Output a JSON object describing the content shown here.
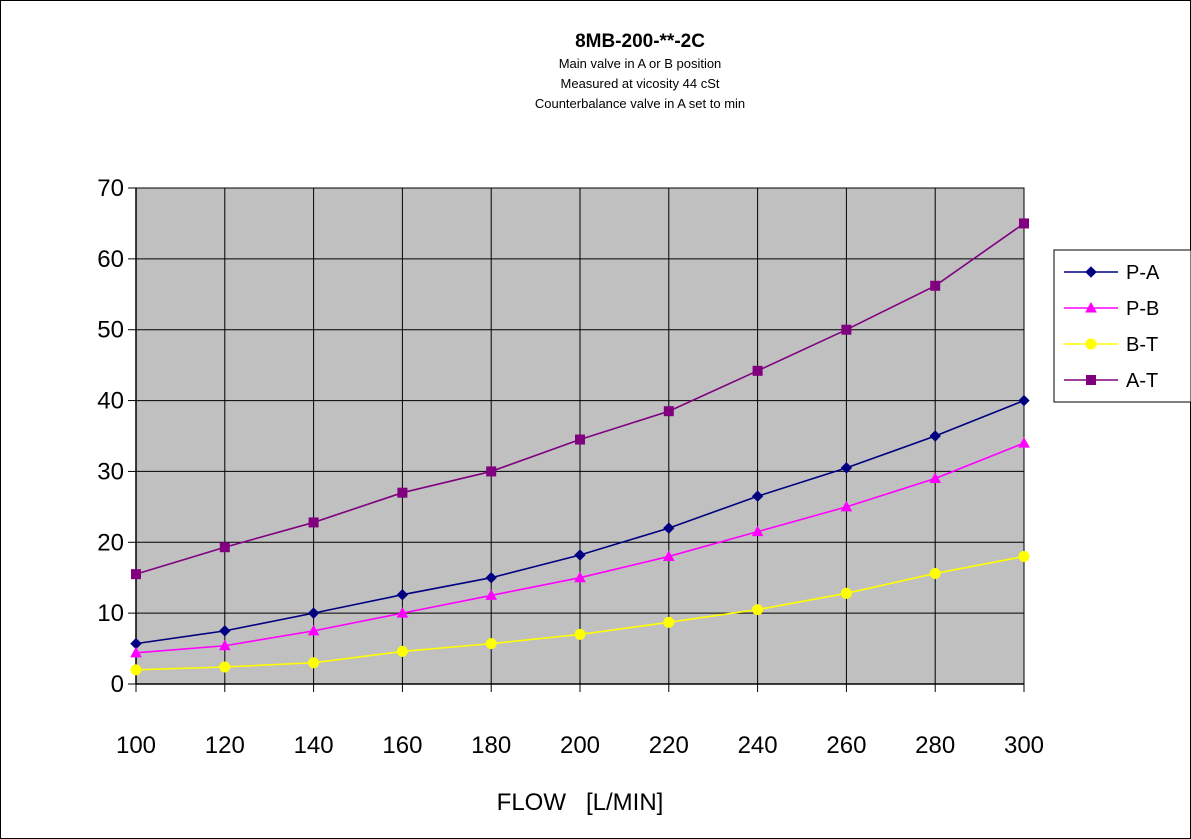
{
  "chart_data": {
    "type": "line",
    "title": "8MB-200-**-2C",
    "subtitle_lines": [
      "Main valve in A or B position",
      "Measured at vicosity 44 cSt",
      "Counterbalance valve in A set to min"
    ],
    "xlabel": "FLOW   [L/MIN]",
    "ylabel": "",
    "x": [
      100,
      120,
      140,
      160,
      180,
      200,
      220,
      240,
      260,
      280,
      300
    ],
    "xlim": [
      100,
      300
    ],
    "ylim": [
      0,
      70
    ],
    "x_ticks": [
      "100",
      "120",
      "140",
      "160",
      "180",
      "200",
      "220",
      "240",
      "260",
      "280",
      "300"
    ],
    "y_ticks": [
      "0",
      "10",
      "20",
      "30",
      "40",
      "50",
      "60",
      "70"
    ],
    "grid": true,
    "plot_background": "#c0c0c0",
    "legend_position": "right",
    "series": [
      {
        "name": "P-A",
        "color": "#000080",
        "marker": "diamond",
        "values": [
          5.7,
          7.5,
          10,
          12.6,
          15,
          18.2,
          22,
          26.5,
          30.5,
          35,
          40
        ]
      },
      {
        "name": "P-B",
        "color": "#ff00ff",
        "marker": "triangle",
        "values": [
          4.4,
          5.4,
          7.5,
          10,
          12.5,
          15,
          18,
          21.5,
          25,
          29,
          34
        ]
      },
      {
        "name": "B-T",
        "color": "#ffff00",
        "marker": "circle",
        "values": [
          2,
          2.4,
          3,
          4.6,
          5.7,
          7,
          8.7,
          10.5,
          12.8,
          15.6,
          18
        ]
      },
      {
        "name": "A-T",
        "color": "#800080",
        "marker": "square",
        "values": [
          15.5,
          19.3,
          22.8,
          27,
          30,
          34.5,
          38.5,
          44.2,
          50,
          56.2,
          65
        ]
      }
    ]
  }
}
